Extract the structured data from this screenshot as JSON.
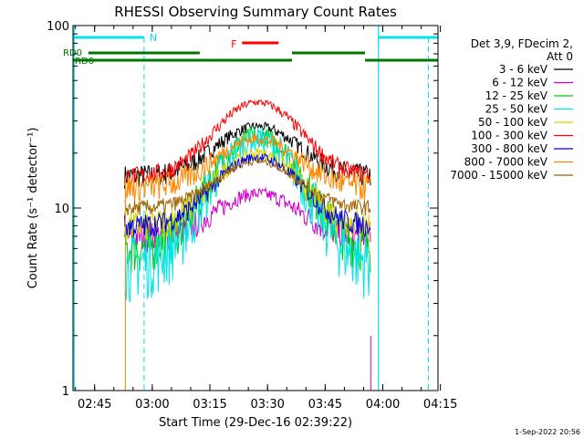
{
  "chart_data": {
    "type": "line",
    "title": "RHESSI Observing Summary Count Rates",
    "xlabel": "Start Time (29-Dec-16 02:39:22)",
    "ylabel": "Count Rate (s⁻¹ detector⁻¹)",
    "y_scale": "log",
    "ylim": [
      1,
      100
    ],
    "xlim_minutes": [
      0,
      95
    ],
    "x_tick_labels": [
      "02:45",
      "03:00",
      "03:15",
      "03:30",
      "03:45",
      "04:00",
      "04:15"
    ],
    "x_tick_minutes": [
      5.633,
      20.633,
      35.633,
      50.633,
      65.633,
      80.633,
      95.633
    ],
    "y_tick_labels": [
      "1",
      "10",
      "100"
    ],
    "y_tick_values": [
      1,
      10,
      100
    ],
    "legend_header": [
      "Det 3,9, FDecim 2,",
      "Att 0"
    ],
    "legend_position": "right",
    "footer_date": "1-Sep-2022 20:56",
    "data_start_min": 13.4,
    "data_end_min": 77.5,
    "series": [
      {
        "name": "3 - 6 keV",
        "color": "#000000",
        "base": 15,
        "peak": 28,
        "noise": 0.15
      },
      {
        "name": "6 - 12 keV",
        "color": "#cc00cc",
        "base": 7,
        "peak": 12,
        "noise": 0.2
      },
      {
        "name": "12 - 25 keV",
        "color": "#00cc00",
        "base": 6,
        "peak": 25,
        "noise": 0.3
      },
      {
        "name": "25 - 50 keV",
        "color": "#00e5e5",
        "base": 5,
        "peak": 24,
        "noise": 0.4
      },
      {
        "name": "50 - 100 keV",
        "color": "#d4d400",
        "base": 8,
        "peak": 20,
        "noise": 0.2
      },
      {
        "name": "100 - 300 keV",
        "color": "#ff0000",
        "base": 15,
        "peak": 38,
        "noise": 0.12
      },
      {
        "name": "300 - 800 keV",
        "color": "#0000dd",
        "base": 8,
        "peak": 19,
        "noise": 0.15
      },
      {
        "name": "800 - 7000 keV",
        "color": "#ff8800",
        "base": 13,
        "peak": 24,
        "noise": 0.18
      },
      {
        "name": "7000 - 15000 keV",
        "color": "#a06400",
        "base": 10,
        "peak": 18,
        "noise": 0.1
      }
    ],
    "annotations": {
      "night_label": "N",
      "flare_label": "F",
      "rd0_label": "RD0",
      "rd6_label": "RD6",
      "night_color": "#00e5e5",
      "flare_color": "#ff0000",
      "rd_color": "#007700",
      "night_bars_min": [
        [
          0,
          18.5
        ],
        [
          79.5,
          95
        ]
      ],
      "night_lines_min": [
        18.5,
        92.5
      ],
      "saa_lines_min": [
        0.3,
        79.5
      ],
      "flare_bar_min": [
        44,
        53.5
      ],
      "rd0_segments_min": [
        [
          4,
          33
        ],
        [
          57,
          76
        ]
      ],
      "rd6_segments_min": [
        [
          0,
          33
        ],
        [
          33,
          57
        ],
        [
          76,
          95
        ]
      ]
    }
  }
}
